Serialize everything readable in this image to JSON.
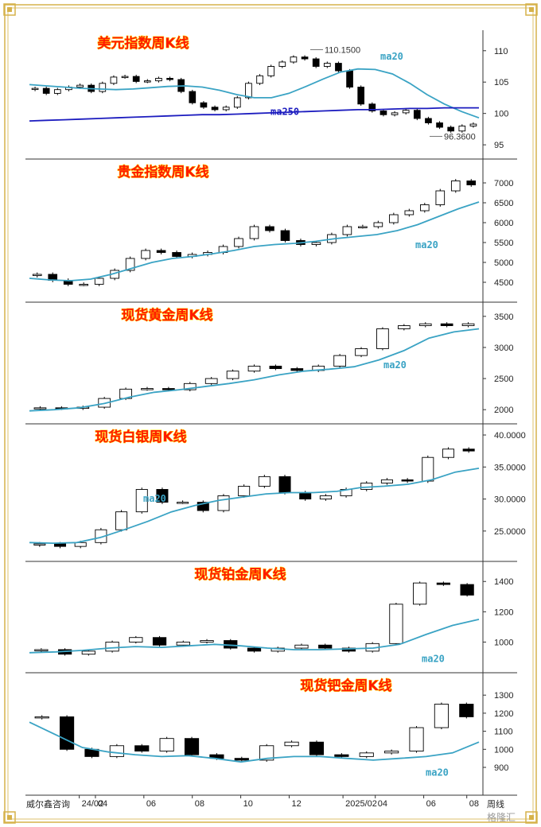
{
  "footer": {
    "source": "威尔鑫咨询",
    "period": "周线",
    "watermark": "格隆汇"
  },
  "x_axis": {
    "ticks": [
      {
        "label": "24/02",
        "x": 0.1
      },
      {
        "label": "04",
        "x": 0.13
      },
      {
        "label": "06",
        "x": 0.22
      },
      {
        "label": "08",
        "x": 0.31
      },
      {
        "label": "10",
        "x": 0.4
      },
      {
        "label": "12",
        "x": 0.49
      },
      {
        "label": "2025/02",
        "x": 0.59
      },
      {
        "label": "04",
        "x": 0.65
      },
      {
        "label": "06",
        "x": 0.74
      },
      {
        "label": "08",
        "x": 0.82
      }
    ]
  },
  "colors": {
    "ma20": "#3aa3c4",
    "ma250": "#1c1cbf",
    "title_fill": "#ff1a00",
    "title_stroke": "#ffe000",
    "frame_gold": "#d6b24a"
  },
  "chart_data": [
    {
      "type": "candlestick",
      "title": "美元指数周K线",
      "ylim": [
        94,
        112
      ],
      "yticks": [
        "110",
        "105",
        "100",
        "95"
      ],
      "annotations": [
        {
          "text": "110.1500",
          "y": 110.15
        },
        {
          "text": "96.3600",
          "y": 96.36
        }
      ],
      "series": [
        {
          "name": "ma20",
          "values": [
            104.6,
            104.4,
            104.2,
            104.0,
            103.9,
            103.8,
            103.9,
            104.1,
            104.3,
            104.4,
            104.2,
            103.7,
            103.0,
            102.5,
            102.5,
            103.2,
            104.3,
            105.5,
            106.6,
            107.1,
            107.0,
            106.3,
            104.8,
            103.0,
            101.5,
            100.3,
            99.3
          ]
        },
        {
          "name": "ma250",
          "values": [
            98.8,
            98.9,
            99.0,
            99.1,
            99.2,
            99.3,
            99.4,
            99.5,
            99.6,
            99.7,
            99.8,
            99.8,
            99.9,
            100.0,
            100.1,
            100.2,
            100.3,
            100.4,
            100.5,
            100.6,
            100.6,
            100.7,
            100.8,
            100.8,
            100.9,
            100.9,
            100.9
          ]
        }
      ],
      "closes": [
        104.0,
        103.2,
        103.8,
        104.2,
        104.5,
        103.5,
        104.8,
        105.8,
        105.9,
        105.1,
        105.2,
        105.6,
        105.4,
        103.5,
        101.7,
        101.0,
        100.6,
        101.0,
        102.5,
        104.8,
        106.0,
        107.5,
        108.2,
        109.0,
        108.7,
        107.5,
        108.0,
        106.8,
        104.2,
        101.5,
        100.4,
        99.8,
        100.1,
        100.5,
        99.2,
        98.5,
        97.8,
        97.2,
        98.0,
        98.3
      ],
      "ma_label": "ma20",
      "ma2_label": "ma250"
    },
    {
      "type": "candlestick",
      "title": "贵金指数周K线",
      "ylim": [
        4200,
        7400
      ],
      "yticks": [
        "7000",
        "6500",
        "6000",
        "5500",
        "5000",
        "4500"
      ],
      "series": [
        {
          "name": "ma20",
          "values": [
            4600,
            4560,
            4540,
            4580,
            4700,
            4850,
            5000,
            5100,
            5150,
            5220,
            5300,
            5400,
            5450,
            5480,
            5530,
            5600,
            5650,
            5700,
            5800,
            5950,
            6150,
            6350,
            6520
          ]
        }
      ],
      "closes": [
        4700,
        4550,
        4450,
        4450,
        4600,
        4800,
        5100,
        5300,
        5250,
        5150,
        5200,
        5250,
        5400,
        5600,
        5900,
        5800,
        5550,
        5450,
        5500,
        5700,
        5900,
        5900,
        6000,
        6200,
        6300,
        6450,
        6800,
        7050,
        6950
      ],
      "ma_label": "ma20"
    },
    {
      "type": "candlestick",
      "title": "现货黄金周K线",
      "ylim": [
        1900,
        3600
      ],
      "yticks": [
        "3500",
        "3000",
        "2500",
        "2000"
      ],
      "series": [
        {
          "name": "ma20",
          "values": [
            1980,
            2000,
            2030,
            2100,
            2200,
            2280,
            2320,
            2370,
            2420,
            2480,
            2560,
            2620,
            2650,
            2690,
            2800,
            2950,
            3150,
            3250,
            3300
          ]
        }
      ],
      "closes": [
        2030,
        2020,
        2040,
        2180,
        2330,
        2340,
        2320,
        2420,
        2500,
        2620,
        2700,
        2660,
        2630,
        2700,
        2870,
        2980,
        3300,
        3350,
        3380,
        3350,
        3380
      ],
      "ma_label": "ma20"
    },
    {
      "type": "candlestick",
      "title": "现货白银周K线",
      "ylim": [
        21.5,
        40.5
      ],
      "yticks": [
        "40.0000",
        "35.0000",
        "30.0000",
        "25.0000"
      ],
      "series": [
        {
          "name": "ma20",
          "values": [
            23.2,
            23.1,
            23.2,
            24.0,
            25.2,
            26.5,
            28.0,
            29.0,
            29.8,
            30.3,
            30.8,
            31.0,
            31.0,
            31.2,
            31.8,
            32.0,
            32.3,
            33.0,
            34.2,
            34.8
          ]
        }
      ],
      "closes": [
        23.0,
        22.6,
        23.2,
        25.2,
        28.0,
        31.5,
        29.5,
        29.5,
        28.2,
        30.5,
        32.0,
        33.5,
        31.0,
        30.0,
        30.5,
        31.5,
        32.5,
        33.0,
        32.8,
        36.5,
        37.8,
        37.5
      ],
      "ma_label": "ma20"
    },
    {
      "type": "candlestick",
      "title": "现货铂金周K线",
      "ylim": [
        850,
        1480
      ],
      "yticks": [
        "1400",
        "1200",
        "1000"
      ],
      "series": [
        {
          "name": "ma20",
          "values": [
            930,
            935,
            945,
            960,
            970,
            965,
            975,
            985,
            975,
            960,
            950,
            950,
            955,
            960,
            985,
            1050,
            1110,
            1150
          ]
        }
      ],
      "closes": [
        950,
        920,
        940,
        1000,
        1030,
        980,
        1000,
        1010,
        960,
        940,
        960,
        980,
        960,
        940,
        990,
        1250,
        1390,
        1380,
        1310
      ],
      "ma_label": "ma20"
    },
    {
      "type": "candlestick",
      "title": "现货钯金周K线",
      "ylim": [
        790,
        1380
      ],
      "yticks": [
        "1300",
        "1200",
        "1100",
        "1000",
        "900"
      ],
      "series": [
        {
          "name": "ma20",
          "values": [
            1150,
            1080,
            1010,
            985,
            970,
            960,
            965,
            950,
            930,
            950,
            960,
            960,
            950,
            940,
            950,
            960,
            980,
            1040
          ]
        }
      ],
      "closes": [
        1180,
        1000,
        960,
        1020,
        990,
        1060,
        970,
        950,
        940,
        1020,
        1040,
        970,
        960,
        980,
        990,
        1120,
        1250,
        1180
      ],
      "ma_label": "ma20"
    }
  ]
}
